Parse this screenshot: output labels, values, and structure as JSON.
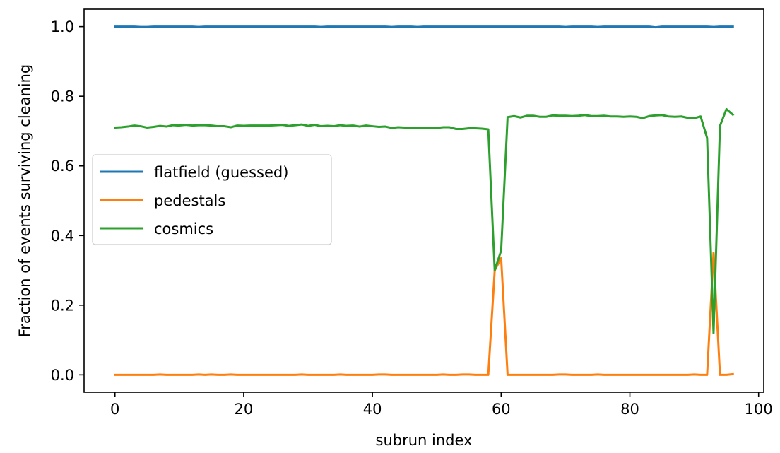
{
  "chart_data": {
    "type": "line",
    "xlabel": "subrun index",
    "ylabel": "Fraction of events surviving cleaning",
    "xlim": [
      -4.8,
      100.8
    ],
    "ylim": [
      -0.05,
      1.05
    ],
    "xticks": [
      0,
      20,
      40,
      60,
      80,
      100
    ],
    "xtick_labels": [
      "0",
      "20",
      "40",
      "60",
      "80",
      "100"
    ],
    "yticks": [
      0.0,
      0.2,
      0.4,
      0.6,
      0.8,
      1.0
    ],
    "ytick_labels": [
      "0.0",
      "0.2",
      "0.4",
      "0.6",
      "0.8",
      "1.0"
    ],
    "grid": false,
    "legend_position": "center-left",
    "x": [
      0,
      1,
      2,
      3,
      4,
      5,
      6,
      7,
      8,
      9,
      10,
      11,
      12,
      13,
      14,
      15,
      16,
      17,
      18,
      19,
      20,
      21,
      22,
      23,
      24,
      25,
      26,
      27,
      28,
      29,
      30,
      31,
      32,
      33,
      34,
      35,
      36,
      37,
      38,
      39,
      40,
      41,
      42,
      43,
      44,
      45,
      46,
      47,
      48,
      49,
      50,
      51,
      52,
      53,
      54,
      55,
      56,
      57,
      58,
      59,
      60,
      61,
      62,
      63,
      64,
      65,
      66,
      67,
      68,
      69,
      70,
      71,
      72,
      73,
      74,
      75,
      76,
      77,
      78,
      79,
      80,
      81,
      82,
      83,
      84,
      85,
      86,
      87,
      88,
      89,
      90,
      91,
      92,
      93,
      94,
      95,
      96
    ],
    "series": [
      {
        "name": "flatfield (guessed)",
        "color": "#1f77b4",
        "values": [
          1.0,
          1.0,
          1.0,
          1.0,
          0.999,
          0.999,
          1.0,
          1.0,
          1.0,
          1.0,
          1.0,
          1.0,
          1.0,
          0.999,
          1.0,
          1.0,
          1.0,
          1.0,
          1.0,
          1.0,
          1.0,
          1.0,
          1.0,
          1.0,
          1.0,
          1.0,
          1.0,
          1.0,
          1.0,
          1.0,
          1.0,
          1.0,
          0.999,
          1.0,
          1.0,
          1.0,
          1.0,
          1.0,
          1.0,
          1.0,
          1.0,
          1.0,
          1.0,
          0.999,
          1.0,
          1.0,
          1.0,
          0.999,
          1.0,
          1.0,
          1.0,
          1.0,
          1.0,
          1.0,
          1.0,
          1.0,
          1.0,
          1.0,
          1.0,
          1.0,
          1.0,
          1.0,
          1.0,
          1.0,
          1.0,
          1.0,
          1.0,
          1.0,
          1.0,
          1.0,
          0.999,
          1.0,
          1.0,
          1.0,
          1.0,
          0.999,
          1.0,
          1.0,
          1.0,
          1.0,
          1.0,
          1.0,
          1.0,
          1.0,
          0.998,
          1.0,
          1.0,
          1.0,
          1.0,
          1.0,
          1.0,
          1.0,
          1.0,
          0.999,
          1.0,
          1.0,
          1.0
        ]
      },
      {
        "name": "pedestals",
        "color": "#ff7f0e",
        "values": [
          0.0,
          0.0,
          0.0,
          0.0,
          0.0,
          0.0,
          0.0,
          0.001,
          0.0,
          0.0,
          0.0,
          0.0,
          0.0,
          0.001,
          0.0,
          0.001,
          0.0,
          0.0,
          0.001,
          0.0,
          0.0,
          0.0,
          0.0,
          0.0,
          0.0,
          0.0,
          0.0,
          0.0,
          0.0,
          0.001,
          0.0,
          0.0,
          0.0,
          0.0,
          0.0,
          0.001,
          0.0,
          0.0,
          0.0,
          0.0,
          0.0,
          0.001,
          0.001,
          0.0,
          0.0,
          0.0,
          0.0,
          0.0,
          0.0,
          0.0,
          0.0,
          0.001,
          0.0,
          0.0,
          0.001,
          0.001,
          0.0,
          0.0,
          0.0,
          0.3,
          0.335,
          0.0,
          0.0,
          0.0,
          0.0,
          0.0,
          0.0,
          0.0,
          0.0,
          0.001,
          0.001,
          0.0,
          0.0,
          0.0,
          0.0,
          0.001,
          0.0,
          0.0,
          0.0,
          0.0,
          0.0,
          0.0,
          0.0,
          0.0,
          0.0,
          0.0,
          0.0,
          0.0,
          0.0,
          0.0,
          0.001,
          0.0,
          0.0,
          0.35,
          0.0,
          0.0,
          0.002
        ]
      },
      {
        "name": "cosmics",
        "color": "#2ca02c",
        "values": [
          0.71,
          0.711,
          0.713,
          0.716,
          0.714,
          0.71,
          0.712,
          0.715,
          0.713,
          0.717,
          0.716,
          0.718,
          0.716,
          0.717,
          0.717,
          0.716,
          0.714,
          0.714,
          0.711,
          0.716,
          0.715,
          0.716,
          0.716,
          0.716,
          0.716,
          0.717,
          0.718,
          0.715,
          0.717,
          0.719,
          0.715,
          0.718,
          0.714,
          0.715,
          0.714,
          0.717,
          0.715,
          0.716,
          0.713,
          0.716,
          0.714,
          0.712,
          0.713,
          0.709,
          0.711,
          0.71,
          0.709,
          0.708,
          0.709,
          0.71,
          0.709,
          0.711,
          0.711,
          0.706,
          0.706,
          0.708,
          0.708,
          0.707,
          0.705,
          0.3,
          0.357,
          0.74,
          0.743,
          0.739,
          0.744,
          0.744,
          0.741,
          0.741,
          0.745,
          0.744,
          0.744,
          0.743,
          0.744,
          0.746,
          0.743,
          0.743,
          0.744,
          0.742,
          0.742,
          0.741,
          0.742,
          0.741,
          0.737,
          0.743,
          0.745,
          0.746,
          0.742,
          0.741,
          0.742,
          0.738,
          0.737,
          0.742,
          0.68,
          0.12,
          0.715,
          0.763,
          0.747
        ]
      }
    ]
  }
}
